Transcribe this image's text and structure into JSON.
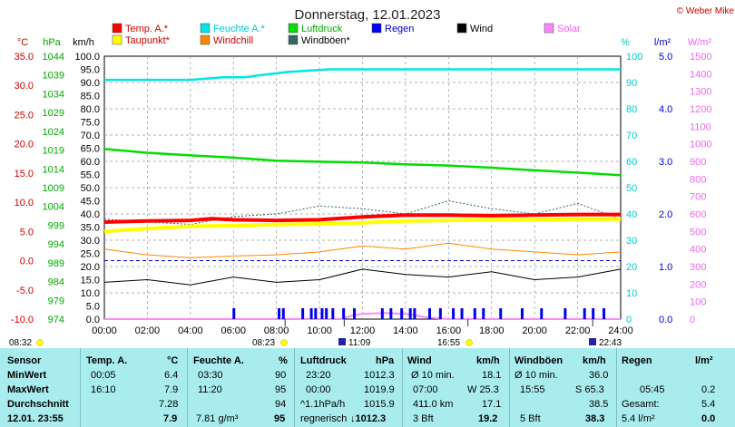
{
  "chart_data": {
    "type": "line",
    "title": "Donnerstag, 12.01.2023",
    "copyright": "© Weber Mike",
    "x_ticks": [
      "00:00",
      "02:00",
      "04:00",
      "06:00",
      "08:00",
      "10:00",
      "12:00",
      "14:00",
      "16:00",
      "18:00",
      "20:00",
      "22:00",
      "24:00"
    ],
    "axes": {
      "temp": {
        "unit": "°C",
        "range": [
          -10,
          35
        ],
        "ticks": [
          "35.0",
          "30.0",
          "25.0",
          "20.0",
          "15.0",
          "10.0",
          "5.0",
          "0.0",
          "-5.0",
          "-10.0"
        ]
      },
      "pressure": {
        "unit": "hPa",
        "range": [
          974,
          1044
        ],
        "ticks": [
          "1044",
          "1039",
          "1034",
          "1029",
          "1024",
          "1019",
          "1014",
          "1009",
          "1004",
          "999",
          "994",
          "989",
          "984",
          "979",
          "974"
        ]
      },
      "wind": {
        "unit": "km/h",
        "range": [
          0,
          100
        ],
        "ticks": [
          "100.0",
          "95.0",
          "90.0",
          "85.0",
          "80.0",
          "75.0",
          "70.0",
          "65.0",
          "60.0",
          "55.0",
          "50.0",
          "45.0",
          "40.0",
          "35.0",
          "30.0",
          "25.0",
          "20.0",
          "15.0",
          "10.0",
          "5.0",
          "0.0"
        ]
      },
      "humidity": {
        "unit": "%",
        "range": [
          0,
          100
        ],
        "ticks": [
          "100",
          "90",
          "80",
          "70",
          "60",
          "50",
          "40",
          "30",
          "20",
          "10",
          "0"
        ]
      },
      "rain": {
        "unit": "l/m²",
        "range": [
          0,
          5
        ],
        "ticks": [
          "5.0",
          "4.0",
          "3.0",
          "2.0",
          "1.0",
          "0.0"
        ]
      },
      "solar": {
        "unit": "W/m²",
        "range": [
          0,
          1500
        ],
        "ticks": [
          "1500",
          "1400",
          "1300",
          "1200",
          "1100",
          "1000",
          "900",
          "800",
          "700",
          "600",
          "500",
          "400",
          "300",
          "200",
          "100",
          "0"
        ]
      }
    },
    "legend": [
      {
        "label": "Temp. A.*",
        "color": "#ff0000"
      },
      {
        "label": "Feuchte A.*",
        "color": "#00e5e5"
      },
      {
        "label": "Luftdruck",
        "color": "#00dd00"
      },
      {
        "label": "Regen",
        "color": "#0000ff"
      },
      {
        "label": "Wind",
        "color": "#000000"
      },
      {
        "label": "Solar",
        "color": "#ff88ff"
      },
      {
        "label": "Taupunkt*",
        "color": "#ffff00"
      },
      {
        "label": "Windchill",
        "color": "#ff8800"
      },
      {
        "label": "Windböen*",
        "color": "#336666"
      }
    ],
    "series": [
      {
        "name": "Temp. A.*",
        "axis": "temp",
        "x": [
          0,
          2,
          4,
          5,
          6,
          8,
          10,
          12,
          14,
          16,
          18,
          20,
          22,
          24
        ],
        "values": [
          6.6,
          6.8,
          6.9,
          7.2,
          7.0,
          6.9,
          7.0,
          7.5,
          7.8,
          7.8,
          7.7,
          7.8,
          7.9,
          7.9
        ]
      },
      {
        "name": "Taupunkt*",
        "axis": "temp",
        "x": [
          0,
          2,
          4,
          6,
          8,
          10,
          12,
          14,
          16,
          18,
          20,
          22,
          24
        ],
        "values": [
          5.0,
          5.5,
          5.9,
          6.0,
          6.2,
          6.3,
          6.5,
          6.8,
          6.9,
          7.0,
          7.0,
          7.1,
          7.1
        ]
      },
      {
        "name": "Feuchte A.*",
        "axis": "humidity",
        "x": [
          0,
          2,
          4,
          5.5,
          6.5,
          7.5,
          8.5,
          9.5,
          10.5,
          11.5,
          12.5,
          14,
          16,
          18,
          20,
          22,
          24
        ],
        "values": [
          91,
          91,
          91,
          92,
          92,
          93,
          94,
          94.5,
          95,
          95,
          95,
          95,
          95,
          95,
          95,
          95,
          95
        ]
      },
      {
        "name": "Luftdruck",
        "axis": "pressure",
        "x": [
          0,
          2,
          4,
          6,
          8,
          10,
          12,
          14,
          16,
          18,
          20,
          22,
          24
        ],
        "values": [
          1019.3,
          1018.3,
          1017.6,
          1017.0,
          1016.2,
          1015.9,
          1015.7,
          1015.2,
          1014.9,
          1014.3,
          1013.6,
          1013.0,
          1012.3
        ]
      },
      {
        "name": "Windchill",
        "axis": "temp",
        "x": [
          0,
          2,
          4,
          6,
          8,
          10,
          12,
          14,
          16,
          18,
          20,
          22,
          24
        ],
        "values": [
          2.0,
          1.0,
          0.5,
          0.8,
          1.0,
          1.5,
          2.5,
          2.0,
          3.0,
          2.0,
          1.5,
          1.0,
          1.5
        ]
      },
      {
        "name": "Wind",
        "axis": "wind",
        "x": [
          0,
          2,
          4,
          6,
          8,
          10,
          12,
          14,
          16,
          18,
          20,
          22,
          24
        ],
        "values": [
          14,
          15,
          13,
          16,
          14,
          15,
          19,
          17,
          16,
          18,
          15,
          16,
          19
        ]
      },
      {
        "name": "Windböen*",
        "axis": "wind",
        "x": [
          0,
          2,
          4,
          6,
          8,
          10,
          12,
          14,
          16,
          18,
          20,
          22,
          24
        ],
        "values": [
          38,
          37,
          36,
          39,
          40,
          43,
          42,
          40,
          45,
          42,
          40,
          44,
          38
        ]
      },
      {
        "name": "Solar",
        "axis": "solar",
        "x": [
          0,
          11,
          11.5,
          12,
          13,
          14,
          14.5,
          15,
          16,
          24
        ],
        "values": [
          0,
          0,
          20,
          30,
          35,
          30,
          20,
          10,
          0,
          0
        ]
      }
    ],
    "rain_marks": [
      6.0,
      8.1,
      8.3,
      9.2,
      9.6,
      9.8,
      10.1,
      10.3,
      10.6,
      11.1,
      11.6,
      12.9,
      13.3,
      13.8,
      14.2,
      14.4,
      15.1,
      15.6,
      16.2,
      16.6,
      17.2,
      17.6,
      18.4,
      19.4,
      20.3,
      21.4,
      22.3,
      22.7,
      23.2
    ],
    "sun_times": {
      "sunrise_label": "08:32",
      "sunrise_marker": "08:23",
      "solar_noon": "11:09",
      "sunset_marker": "16:55",
      "moon": "22:43"
    }
  },
  "table": {
    "headers": [
      "Sensor",
      "Temp. A.",
      "°C",
      "Feuchte A.",
      "%",
      "Luftdruck",
      "hPa",
      "Wind",
      "km/h",
      "Windböen",
      "km/h",
      "Regen",
      "l/m²"
    ],
    "rows": [
      {
        "label": "MinWert",
        "t_time": "00:05",
        "t_val": "6.4",
        "h_time": "03:30",
        "h_val": "90",
        "p_time": "23:20",
        "p_val": "1012.3",
        "w_desc": "Ø 10 min.",
        "w_val": "18.1",
        "g_desc": "Ø 10 min.",
        "g_val": "36.0",
        "r_desc": "",
        "r_val": ""
      },
      {
        "label": "MaxWert",
        "t_time": "16:10",
        "t_val": "7.9",
        "h_time": "11:20",
        "h_val": "95",
        "p_time": "00:00",
        "p_val": "1019.9",
        "w_desc": "07:00",
        "w_dir": "W 25.3",
        "w_val": "",
        "g_desc": "15:55",
        "g_dir": "S 65.3",
        "g_val": "",
        "r_desc": "05:45",
        "r_val": "0.2"
      },
      {
        "label": "Durchschnitt",
        "t_time": "",
        "t_val": "7.28",
        "h_time": "",
        "h_val": "94",
        "p_time": "^1.1hPa/h",
        "p_val": "1015.9",
        "w_desc": "411.0 km",
        "w_val": "17.1",
        "g_desc": "",
        "g_val": "38.5",
        "r_desc": "Gesamt:",
        "r_val": "5.4"
      },
      {
        "label": "12.01. 23:55",
        "t_time": "",
        "t_val": "7.9",
        "h_time": "7.81 g/m³",
        "h_val": "95",
        "p_time": "regnerisch",
        "p_val": "↓1012.3",
        "w_desc": "3 Bft",
        "w_val": "19.2",
        "g_desc": "5 Bft",
        "g_val": "38.3",
        "r_desc": "5.4 l/m²",
        "r_val": "0.0"
      }
    ]
  }
}
